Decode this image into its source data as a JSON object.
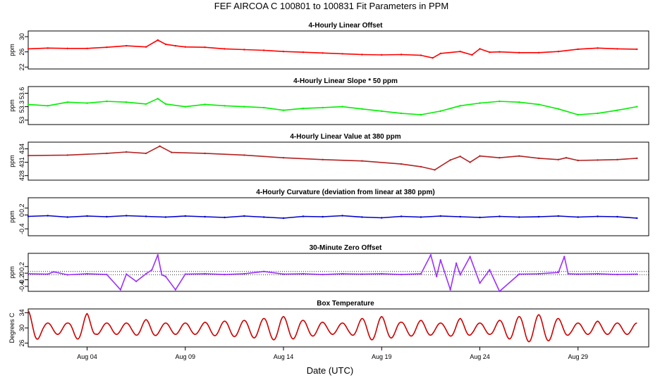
{
  "figure": {
    "title": "FEF   AIRCOA C   100801 to 100831   Fit Parameters in PPM",
    "xlabel": "Date (UTC)",
    "x_ticks": [
      "Aug 04",
      "Aug 09",
      "Aug 14",
      "Aug 19",
      "Aug 24",
      "Aug 29"
    ]
  },
  "chart_data": [
    {
      "type": "line",
      "title": "4-Hourly Linear Offset",
      "ylabel": "ppm",
      "ylim": [
        21.5,
        31.5
      ],
      "yticks": [
        22,
        26,
        30
      ],
      "color": "#ff0000",
      "x": [
        1,
        2,
        3,
        4,
        5,
        6,
        7,
        7.6,
        8,
        8.5,
        9,
        10,
        11,
        12,
        13,
        14,
        15,
        16,
        17,
        18,
        19,
        20,
        21,
        21.6,
        22,
        23,
        23.6,
        24,
        24.5,
        25,
        26,
        27,
        28,
        29,
        30,
        31,
        32
      ],
      "values": [
        26.8,
        27.0,
        26.9,
        26.9,
        27.2,
        27.6,
        27.3,
        29.1,
        28.0,
        27.6,
        27.3,
        27.2,
        26.8,
        26.6,
        26.4,
        26.1,
        25.9,
        25.7,
        25.5,
        25.3,
        25.2,
        25.3,
        25.1,
        24.4,
        25.6,
        26.1,
        25.2,
        26.8,
        25.9,
        26.0,
        25.8,
        25.8,
        26.1,
        26.7,
        27.0,
        26.8,
        26.7
      ]
    },
    {
      "type": "line",
      "title": "4-Hourly Linear Slope * 50 ppm",
      "ylabel": "ppm",
      "ylim": [
        52.9,
        53.75
      ],
      "yticks": [
        53.0,
        53.3,
        53.6
      ],
      "color": "#00ee00",
      "x": [
        1,
        2,
        3,
        4,
        5,
        6,
        7,
        7.6,
        8,
        9,
        10,
        11,
        12,
        13,
        14,
        15,
        16,
        17,
        18,
        19,
        20,
        21,
        22,
        23,
        24,
        25,
        26,
        27,
        28,
        29,
        30,
        31,
        32
      ],
      "values": [
        53.35,
        53.32,
        53.4,
        53.38,
        53.42,
        53.4,
        53.36,
        53.48,
        53.36,
        53.3,
        53.35,
        53.32,
        53.3,
        53.28,
        53.22,
        53.26,
        53.28,
        53.3,
        53.25,
        53.2,
        53.15,
        53.12,
        53.2,
        53.32,
        53.38,
        53.42,
        53.4,
        53.35,
        53.25,
        53.12,
        53.15,
        53.22,
        53.3
      ]
    },
    {
      "type": "line",
      "title": "4-Hourly Linear Value at 380 ppm",
      "ylabel": "ppm",
      "ylim": [
        427,
        435.5
      ],
      "yticks": [
        428,
        431,
        434
      ],
      "color": "#b22222",
      "x": [
        1,
        3,
        5,
        6,
        7,
        7.7,
        8.3,
        10,
        12,
        14,
        16,
        18,
        20,
        21,
        21.7,
        22.5,
        23,
        23.5,
        24,
        25,
        26,
        27,
        28,
        28.4,
        29,
        30,
        31,
        32
      ],
      "values": [
        432.5,
        432.6,
        433.0,
        433.3,
        433.0,
        434.6,
        433.2,
        433.0,
        432.6,
        432.0,
        431.6,
        431.3,
        430.6,
        430.0,
        429.3,
        431.5,
        432.3,
        431.0,
        432.4,
        432.0,
        432.4,
        431.9,
        431.6,
        432.0,
        431.4,
        431.5,
        431.6,
        431.9
      ]
    },
    {
      "type": "line",
      "title": "4-Hourly Curvature (deviation from linear at 380 ppm)",
      "ylabel": "ppm",
      "ylim": [
        -0.6,
        0.5
      ],
      "yticks": [
        -0.4,
        0.0,
        0.2
      ],
      "color": "#0000cd",
      "x": [
        1,
        2,
        3,
        4,
        5,
        6,
        7,
        8,
        9,
        10,
        11,
        12,
        13,
        14,
        15,
        16,
        17,
        18,
        19,
        20,
        21,
        22,
        23,
        24,
        25,
        26,
        27,
        28,
        29,
        30,
        31,
        32
      ],
      "values": [
        -0.04,
        -0.02,
        -0.06,
        -0.03,
        -0.05,
        -0.02,
        -0.04,
        -0.06,
        -0.03,
        -0.05,
        -0.07,
        -0.03,
        -0.06,
        -0.09,
        -0.04,
        -0.05,
        -0.02,
        -0.06,
        -0.08,
        -0.04,
        -0.06,
        -0.03,
        -0.05,
        -0.07,
        -0.04,
        -0.06,
        -0.05,
        -0.03,
        -0.06,
        -0.04,
        -0.05,
        -0.09
      ]
    },
    {
      "type": "line",
      "title": "30-Minute Zero Offset",
      "ylabel": "ppm",
      "ylim": [
        -0.55,
        0.6
      ],
      "yticks": [
        -0.4,
        -0.2,
        0.0,
        0.2
      ],
      "reference_lines": [
        0.05,
        -0.05
      ],
      "color": "#9b30ff",
      "x": [
        1,
        2,
        2.3,
        3,
        4,
        5,
        5.7,
        6,
        6.5,
        7,
        7.3,
        7.6,
        7.8,
        8,
        8.5,
        9,
        10,
        11,
        12,
        13,
        14,
        15,
        16,
        17,
        18,
        19,
        20,
        21,
        21.5,
        21.8,
        22,
        22.5,
        22.8,
        23,
        23.5,
        24,
        24.5,
        25,
        26,
        27,
        28,
        28.3,
        28.5,
        29,
        30,
        31,
        32
      ],
      "values": [
        -0.02,
        -0.03,
        0.04,
        -0.05,
        -0.02,
        -0.04,
        -0.5,
        -0.03,
        -0.25,
        -0.02,
        0.1,
        0.55,
        -0.05,
        -0.1,
        -0.5,
        -0.03,
        -0.02,
        -0.04,
        -0.02,
        0.05,
        -0.03,
        -0.02,
        -0.04,
        -0.02,
        -0.03,
        -0.02,
        -0.04,
        -0.02,
        0.55,
        -0.1,
        0.4,
        -0.5,
        0.3,
        -0.05,
        0.5,
        -0.3,
        0.1,
        -0.6,
        -0.03,
        -0.02,
        0.02,
        0.5,
        -0.02,
        -0.03,
        -0.02,
        -0.04,
        -0.03
      ]
    },
    {
      "type": "line",
      "title": "Box Temperature",
      "ylabel": "Degrees C",
      "ylim": [
        25,
        35
      ],
      "yticks": [
        26,
        30,
        34
      ],
      "color": "#cc0000",
      "period_days": 1,
      "mean": 29.8,
      "amplitude": 2.8,
      "x": [
        1,
        2,
        3,
        4,
        5,
        6,
        7,
        8,
        9,
        10,
        11,
        12,
        13,
        14,
        15,
        16,
        17,
        18,
        19,
        20,
        21,
        22,
        23,
        24,
        25,
        26,
        27,
        28,
        29,
        30,
        31,
        32
      ],
      "values": [
        34.5,
        30.5,
        31.2,
        33.8,
        28.2,
        30.8,
        32.2,
        31.0,
        30.2,
        31.5,
        31.8,
        32.0,
        32.5,
        33.0,
        32.0,
        31.5,
        30.5,
        32.5,
        33.0,
        31.5,
        32.0,
        31.0,
        32.5,
        30.5,
        32.0,
        33.0,
        33.5,
        32.5,
        30.5,
        31.8,
        30.0,
        29.5
      ]
    }
  ]
}
